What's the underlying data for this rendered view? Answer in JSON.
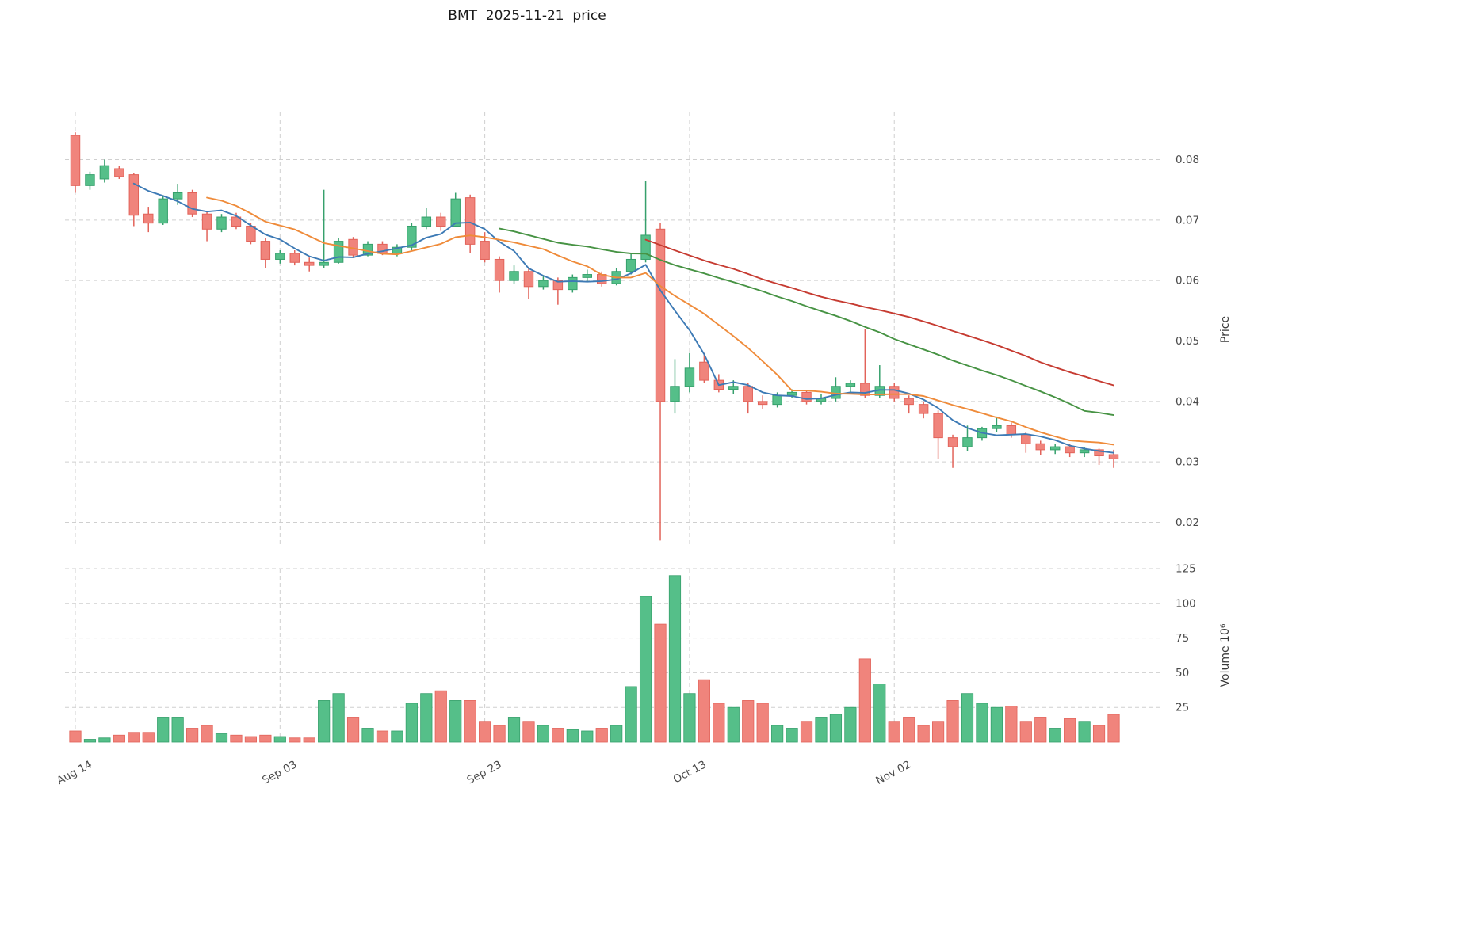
{
  "title": "BMT  2025-11-21  price",
  "colors": {
    "background": "#ffffff",
    "up": "#55bf89",
    "up_edge": "#36a06c",
    "down": "#f0847c",
    "down_edge": "#e2635a",
    "grid": "#cfcfcf",
    "tick_label": "#4a4a4a",
    "axis_label": "#3a3a3a",
    "title": "#1a1a1a"
  },
  "chart_data": {
    "type": "candlestick+volume",
    "title": "BMT  2025-11-21  price",
    "legend_position": "none",
    "grid": "dashed",
    "x_ticks": [
      {
        "index": 0,
        "label": "Aug 14"
      },
      {
        "index": 14,
        "label": "Sep 03"
      },
      {
        "index": 28,
        "label": "Sep 23"
      },
      {
        "index": 42,
        "label": "Oct 13"
      },
      {
        "index": 56,
        "label": "Nov 02"
      }
    ],
    "price_axis": {
      "label": "Price",
      "ticks": [
        0.02,
        0.03,
        0.04,
        0.05,
        0.06,
        0.07,
        0.08
      ],
      "range": [
        0.016,
        0.0878
      ]
    },
    "volume_axis": {
      "label": "Volume  10⁶",
      "ticks": [
        25,
        50,
        75,
        100,
        125
      ],
      "scale_max": 125
    },
    "ma_lines": [
      {
        "name": "MA5",
        "period": 5,
        "color": "#3d7ab5"
      },
      {
        "name": "MA10",
        "period": 10,
        "color": "#ef8b3a"
      },
      {
        "name": "MA30",
        "period": 30,
        "color": "#479344"
      },
      {
        "name": "MA40",
        "period": 40,
        "color": "#c63b31"
      }
    ],
    "candles": [
      {
        "date": "2025-08-14",
        "o": 0.084,
        "h": 0.0845,
        "l": 0.0745,
        "c": 0.0757,
        "v": 8
      },
      {
        "date": "2025-08-15",
        "o": 0.0757,
        "h": 0.078,
        "l": 0.075,
        "c": 0.0775,
        "v": 2
      },
      {
        "date": "2025-08-18",
        "o": 0.0768,
        "h": 0.08,
        "l": 0.0762,
        "c": 0.079,
        "v": 3
      },
      {
        "date": "2025-08-19",
        "o": 0.0785,
        "h": 0.079,
        "l": 0.0768,
        "c": 0.0772,
        "v": 5
      },
      {
        "date": "2025-08-20",
        "o": 0.0775,
        "h": 0.0778,
        "l": 0.069,
        "c": 0.0708,
        "v": 7
      },
      {
        "date": "2025-08-21",
        "o": 0.071,
        "h": 0.0722,
        "l": 0.068,
        "c": 0.0695,
        "v": 7
      },
      {
        "date": "2025-08-22",
        "o": 0.0695,
        "h": 0.074,
        "l": 0.0692,
        "c": 0.0735,
        "v": 18
      },
      {
        "date": "2025-08-25",
        "o": 0.0735,
        "h": 0.076,
        "l": 0.0725,
        "c": 0.0745,
        "v": 18
      },
      {
        "date": "2025-08-26",
        "o": 0.0745,
        "h": 0.075,
        "l": 0.0705,
        "c": 0.071,
        "v": 10
      },
      {
        "date": "2025-08-27",
        "o": 0.071,
        "h": 0.0715,
        "l": 0.0665,
        "c": 0.0685,
        "v": 12
      },
      {
        "date": "2025-08-28",
        "o": 0.0685,
        "h": 0.071,
        "l": 0.068,
        "c": 0.0705,
        "v": 6
      },
      {
        "date": "2025-08-29",
        "o": 0.0705,
        "h": 0.0712,
        "l": 0.0685,
        "c": 0.069,
        "v": 5
      },
      {
        "date": "2025-09-01",
        "o": 0.069,
        "h": 0.0695,
        "l": 0.066,
        "c": 0.0665,
        "v": 4
      },
      {
        "date": "2025-09-02",
        "o": 0.0665,
        "h": 0.067,
        "l": 0.062,
        "c": 0.0635,
        "v": 5
      },
      {
        "date": "2025-09-03",
        "o": 0.0635,
        "h": 0.065,
        "l": 0.0628,
        "c": 0.0645,
        "v": 4
      },
      {
        "date": "2025-09-04",
        "o": 0.0645,
        "h": 0.065,
        "l": 0.0625,
        "c": 0.063,
        "v": 3
      },
      {
        "date": "2025-09-05",
        "o": 0.063,
        "h": 0.0638,
        "l": 0.0615,
        "c": 0.0625,
        "v": 3
      },
      {
        "date": "2025-09-08",
        "o": 0.0625,
        "h": 0.075,
        "l": 0.062,
        "c": 0.063,
        "v": 30
      },
      {
        "date": "2025-09-09",
        "o": 0.063,
        "h": 0.067,
        "l": 0.0628,
        "c": 0.0665,
        "v": 35
      },
      {
        "date": "2025-09-10",
        "o": 0.0668,
        "h": 0.0672,
        "l": 0.0638,
        "c": 0.0642,
        "v": 18
      },
      {
        "date": "2025-09-11",
        "o": 0.0642,
        "h": 0.0665,
        "l": 0.064,
        "c": 0.066,
        "v": 10
      },
      {
        "date": "2025-09-12",
        "o": 0.066,
        "h": 0.0665,
        "l": 0.0642,
        "c": 0.0645,
        "v": 8
      },
      {
        "date": "2025-09-15",
        "o": 0.0645,
        "h": 0.066,
        "l": 0.064,
        "c": 0.0655,
        "v": 8
      },
      {
        "date": "2025-09-16",
        "o": 0.0655,
        "h": 0.0695,
        "l": 0.065,
        "c": 0.069,
        "v": 28
      },
      {
        "date": "2025-09-17",
        "o": 0.069,
        "h": 0.072,
        "l": 0.0685,
        "c": 0.0705,
        "v": 35
      },
      {
        "date": "2025-09-18",
        "o": 0.0705,
        "h": 0.0712,
        "l": 0.0682,
        "c": 0.069,
        "v": 37
      },
      {
        "date": "2025-09-19",
        "o": 0.069,
        "h": 0.0745,
        "l": 0.0688,
        "c": 0.0735,
        "v": 30
      },
      {
        "date": "2025-09-22",
        "o": 0.0737,
        "h": 0.0742,
        "l": 0.0645,
        "c": 0.066,
        "v": 30
      },
      {
        "date": "2025-09-23",
        "o": 0.0665,
        "h": 0.068,
        "l": 0.063,
        "c": 0.0635,
        "v": 15
      },
      {
        "date": "2025-09-24",
        "o": 0.0635,
        "h": 0.064,
        "l": 0.058,
        "c": 0.06,
        "v": 12
      },
      {
        "date": "2025-09-25",
        "o": 0.06,
        "h": 0.0625,
        "l": 0.0595,
        "c": 0.0615,
        "v": 18
      },
      {
        "date": "2025-09-26",
        "o": 0.0615,
        "h": 0.062,
        "l": 0.057,
        "c": 0.059,
        "v": 15
      },
      {
        "date": "2025-09-29",
        "o": 0.059,
        "h": 0.0608,
        "l": 0.0585,
        "c": 0.06,
        "v": 12
      },
      {
        "date": "2025-09-30",
        "o": 0.06,
        "h": 0.0605,
        "l": 0.056,
        "c": 0.0585,
        "v": 10
      },
      {
        "date": "2025-10-01",
        "o": 0.0585,
        "h": 0.061,
        "l": 0.058,
        "c": 0.0605,
        "v": 9
      },
      {
        "date": "2025-10-02",
        "o": 0.0605,
        "h": 0.0618,
        "l": 0.0598,
        "c": 0.061,
        "v": 8
      },
      {
        "date": "2025-10-03",
        "o": 0.061,
        "h": 0.0615,
        "l": 0.059,
        "c": 0.0595,
        "v": 10
      },
      {
        "date": "2025-10-06",
        "o": 0.0595,
        "h": 0.062,
        "l": 0.0592,
        "c": 0.0615,
        "v": 12
      },
      {
        "date": "2025-10-07",
        "o": 0.0615,
        "h": 0.0645,
        "l": 0.061,
        "c": 0.0635,
        "v": 40
      },
      {
        "date": "2025-10-08",
        "o": 0.0635,
        "h": 0.0765,
        "l": 0.063,
        "c": 0.0675,
        "v": 105
      },
      {
        "date": "2025-10-09",
        "o": 0.0685,
        "h": 0.0695,
        "l": 0.017,
        "c": 0.04,
        "v": 85
      },
      {
        "date": "2025-10-10",
        "o": 0.04,
        "h": 0.047,
        "l": 0.038,
        "c": 0.0425,
        "v": 120
      },
      {
        "date": "2025-10-13",
        "o": 0.0425,
        "h": 0.048,
        "l": 0.0415,
        "c": 0.0455,
        "v": 35
      },
      {
        "date": "2025-10-14",
        "o": 0.0465,
        "h": 0.048,
        "l": 0.043,
        "c": 0.0435,
        "v": 45
      },
      {
        "date": "2025-10-15",
        "o": 0.0435,
        "h": 0.0445,
        "l": 0.0415,
        "c": 0.042,
        "v": 28
      },
      {
        "date": "2025-10-16",
        "o": 0.042,
        "h": 0.0435,
        "l": 0.0412,
        "c": 0.0425,
        "v": 25
      },
      {
        "date": "2025-10-17",
        "o": 0.0425,
        "h": 0.043,
        "l": 0.038,
        "c": 0.04,
        "v": 30
      },
      {
        "date": "2025-10-20",
        "o": 0.04,
        "h": 0.041,
        "l": 0.0388,
        "c": 0.0395,
        "v": 28
      },
      {
        "date": "2025-10-21",
        "o": 0.0395,
        "h": 0.0415,
        "l": 0.039,
        "c": 0.041,
        "v": 12
      },
      {
        "date": "2025-10-22",
        "o": 0.041,
        "h": 0.042,
        "l": 0.0405,
        "c": 0.0415,
        "v": 10
      },
      {
        "date": "2025-10-23",
        "o": 0.0415,
        "h": 0.0418,
        "l": 0.0395,
        "c": 0.04,
        "v": 15
      },
      {
        "date": "2025-10-24",
        "o": 0.04,
        "h": 0.0412,
        "l": 0.0395,
        "c": 0.0405,
        "v": 18
      },
      {
        "date": "2025-10-27",
        "o": 0.0405,
        "h": 0.044,
        "l": 0.04,
        "c": 0.0425,
        "v": 20
      },
      {
        "date": "2025-10-28",
        "o": 0.0425,
        "h": 0.0435,
        "l": 0.0415,
        "c": 0.043,
        "v": 25
      },
      {
        "date": "2025-10-29",
        "o": 0.043,
        "h": 0.052,
        "l": 0.0405,
        "c": 0.041,
        "v": 60
      },
      {
        "date": "2025-10-30",
        "o": 0.041,
        "h": 0.046,
        "l": 0.0405,
        "c": 0.0425,
        "v": 42
      },
      {
        "date": "2025-10-31",
        "o": 0.0425,
        "h": 0.043,
        "l": 0.04,
        "c": 0.0405,
        "v": 15
      },
      {
        "date": "2025-11-03",
        "o": 0.0405,
        "h": 0.041,
        "l": 0.038,
        "c": 0.0395,
        "v": 18
      },
      {
        "date": "2025-11-04",
        "o": 0.0395,
        "h": 0.04,
        "l": 0.0372,
        "c": 0.038,
        "v": 12
      },
      {
        "date": "2025-11-05",
        "o": 0.038,
        "h": 0.0385,
        "l": 0.0305,
        "c": 0.034,
        "v": 15
      },
      {
        "date": "2025-11-06",
        "o": 0.034,
        "h": 0.0345,
        "l": 0.029,
        "c": 0.0325,
        "v": 30
      },
      {
        "date": "2025-11-07",
        "o": 0.0325,
        "h": 0.036,
        "l": 0.0318,
        "c": 0.034,
        "v": 35
      },
      {
        "date": "2025-11-10",
        "o": 0.034,
        "h": 0.0358,
        "l": 0.0335,
        "c": 0.0355,
        "v": 28
      },
      {
        "date": "2025-11-11",
        "o": 0.0355,
        "h": 0.0375,
        "l": 0.035,
        "c": 0.036,
        "v": 25
      },
      {
        "date": "2025-11-12",
        "o": 0.036,
        "h": 0.0365,
        "l": 0.034,
        "c": 0.0345,
        "v": 26
      },
      {
        "date": "2025-11-13",
        "o": 0.0345,
        "h": 0.035,
        "l": 0.0315,
        "c": 0.033,
        "v": 15
      },
      {
        "date": "2025-11-14",
        "o": 0.033,
        "h": 0.0335,
        "l": 0.0312,
        "c": 0.032,
        "v": 18
      },
      {
        "date": "2025-11-17",
        "o": 0.032,
        "h": 0.033,
        "l": 0.0313,
        "c": 0.0325,
        "v": 10
      },
      {
        "date": "2025-11-18",
        "o": 0.0325,
        "h": 0.033,
        "l": 0.0308,
        "c": 0.0315,
        "v": 17
      },
      {
        "date": "2025-11-19",
        "o": 0.0315,
        "h": 0.0325,
        "l": 0.0308,
        "c": 0.032,
        "v": 15
      },
      {
        "date": "2025-11-20",
        "o": 0.032,
        "h": 0.0322,
        "l": 0.0295,
        "c": 0.031,
        "v": 12
      },
      {
        "date": "2025-11-21",
        "o": 0.0312,
        "h": 0.032,
        "l": 0.029,
        "c": 0.0305,
        "v": 20
      }
    ]
  }
}
